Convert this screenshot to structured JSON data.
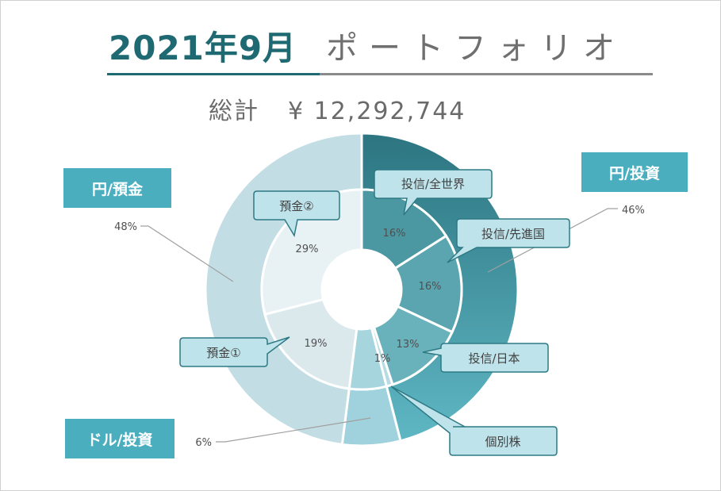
{
  "title": {
    "main": "2021年9月",
    "sub": "ポートフォリオ"
  },
  "total": {
    "label": "総計",
    "value": "¥ 12,292,744"
  },
  "colors": {
    "yen_invest_outer": "#2d7a85",
    "yen_deposit_outer": "#c3dde4",
    "dollar_invest_outer": "#9fd2dc",
    "tag_bg": "#4aaebf",
    "callout_bg": "#bfe3ea",
    "callout_border": "#2d7a85"
  },
  "chart_data": [
    {
      "type": "pie",
      "ring": "outer",
      "slices": [
        {
          "name": "円/投資",
          "value": 46,
          "label": "46%"
        },
        {
          "name": "ドル/投資",
          "value": 6,
          "label": "6%"
        },
        {
          "name": "円/預金",
          "value": 48,
          "label": "48%"
        }
      ]
    },
    {
      "type": "pie",
      "ring": "inner",
      "slices": [
        {
          "name": "投信/全世界",
          "value": 16,
          "label": "16%"
        },
        {
          "name": "投信/先進国",
          "value": 16,
          "label": "16%"
        },
        {
          "name": "投信/日本",
          "value": 13,
          "label": "13%"
        },
        {
          "name": "個別株",
          "value": 1,
          "label": "1%"
        },
        {
          "name": "",
          "value": 6,
          "label": ""
        },
        {
          "name": "預金①",
          "value": 19,
          "label": "19%"
        },
        {
          "name": "預金②",
          "value": 29,
          "label": "29%"
        }
      ]
    }
  ],
  "tags": {
    "yen_deposit": "円/預金",
    "yen_invest": "円/投資",
    "dollar_invest": "ドル/投資"
  },
  "callouts": {
    "world": "投信/全世界",
    "developed": "投信/先進国",
    "japan": "投信/日本",
    "stock": "個別株",
    "deposit1": "預金①",
    "deposit2": "預金②"
  }
}
